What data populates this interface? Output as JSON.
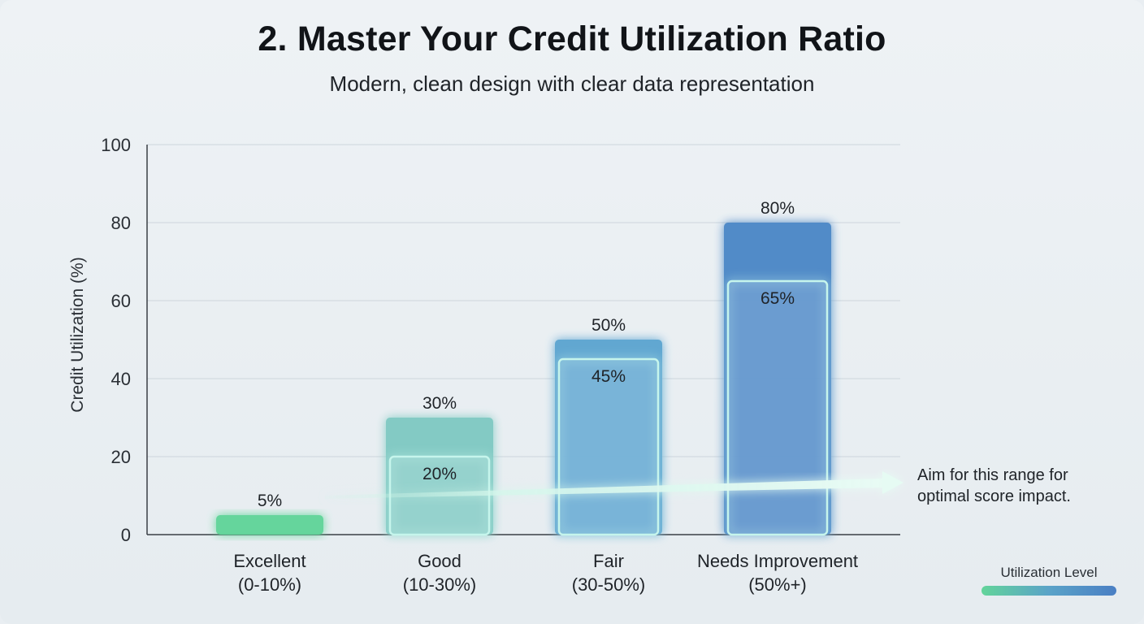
{
  "chart_data": {
    "type": "bar",
    "title": "2. Master Your Credit Utilization Ratio",
    "subtitle": "Modern, clean design with clear data representation",
    "ylabel": "Credit Utilization (%)",
    "xlabel": "",
    "ylim": [
      0,
      100
    ],
    "yticks": [
      "0",
      "20",
      "40",
      "60",
      "80",
      "100"
    ],
    "grid": true,
    "categories": [
      "Excellent",
      "Good",
      "Fair",
      "Needs Improvement"
    ],
    "category_ranges": [
      "(0-10%)",
      "(10-30%)",
      "(30-50%)",
      "(50%+)"
    ],
    "series": [
      {
        "values": [
          5,
          30,
          50,
          80
        ],
        "labels": [
          "5%",
          "30%",
          "50%",
          "80%"
        ]
      },
      {
        "values": [
          null,
          20,
          45,
          65
        ],
        "labels": [
          "",
          "20%",
          "45%",
          "65%"
        ]
      }
    ],
    "colors": [
      "#5fd498",
      "#7ec9c2",
      "#5aa4d0",
      "#4a86c6"
    ],
    "annotation": {
      "text_line1": "Aim for this range for",
      "text_line2": "optimal score impact."
    },
    "legend": {
      "label": "Utilization Level",
      "placement": "bottom-right"
    }
  }
}
